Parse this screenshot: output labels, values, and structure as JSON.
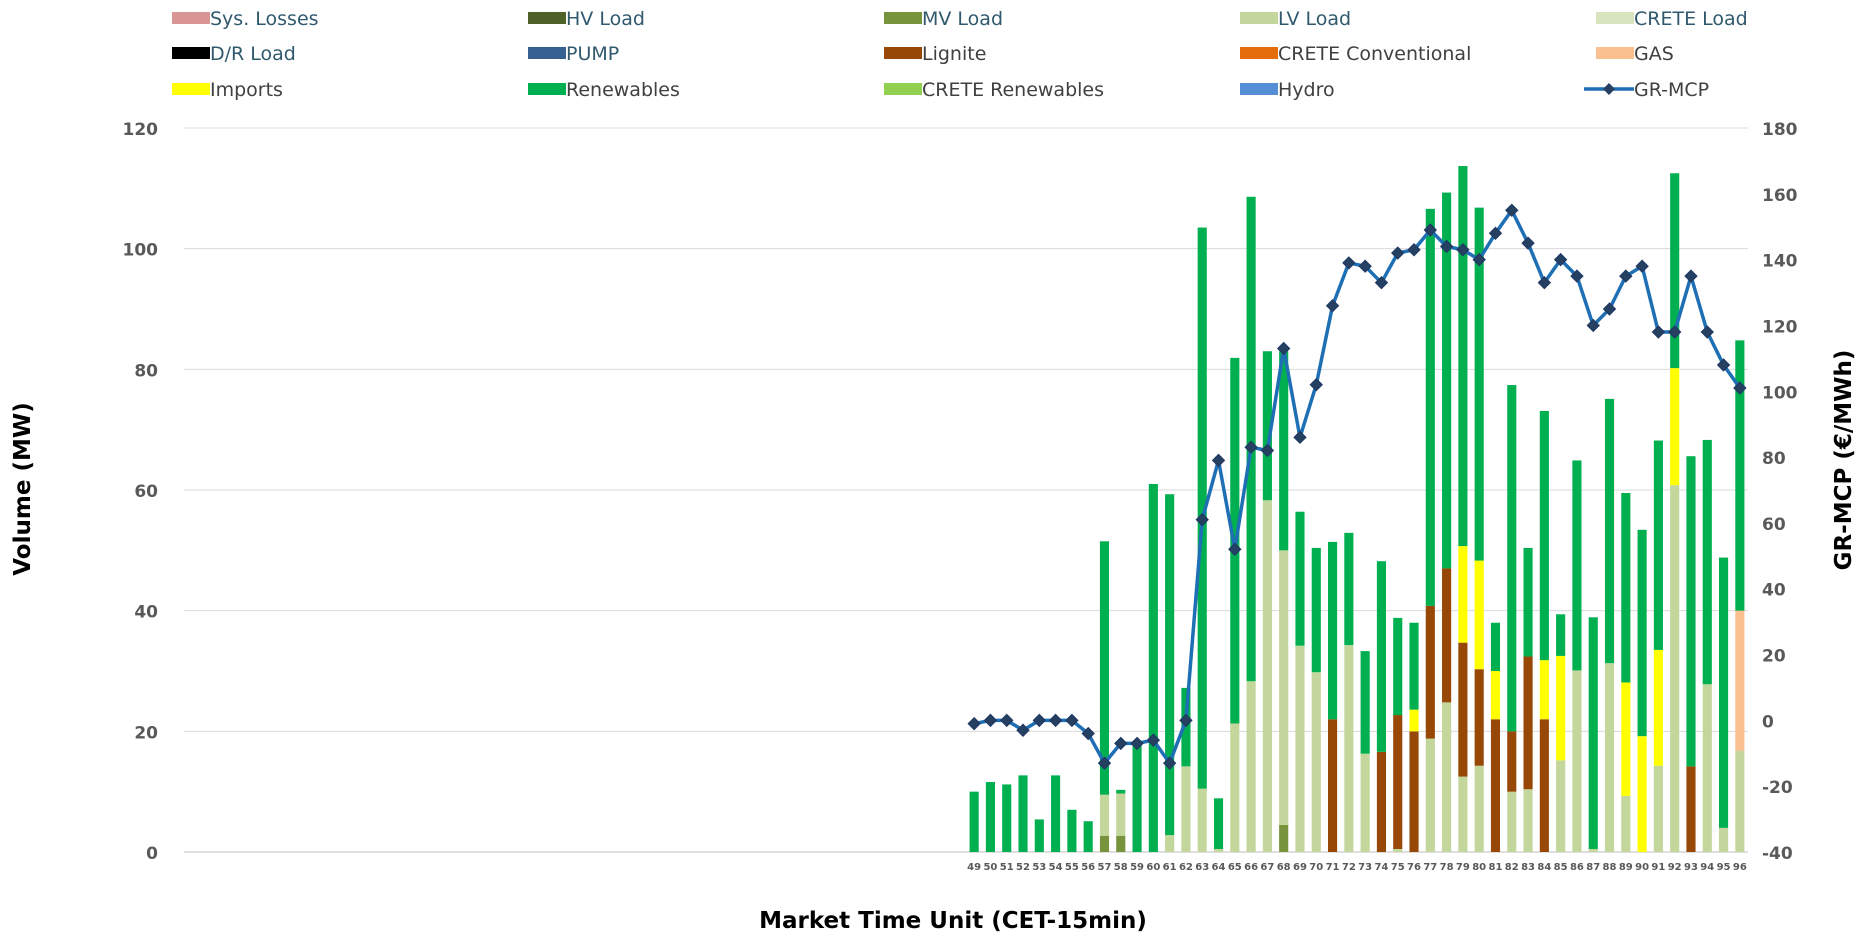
{
  "chart_data": {
    "type": "bar",
    "xlabel": "Market Time Unit (CET-15min)",
    "ylabel": "Volume (MW)",
    "y2label": "GR-MCP (€/MWh)",
    "ylim": [
      0,
      120
    ],
    "y2lim": [
      -40,
      180
    ],
    "yticks": [
      0,
      20,
      40,
      60,
      80,
      100,
      120
    ],
    "y2ticks": [
      -40,
      -20,
      0,
      20,
      40,
      60,
      80,
      100,
      120,
      140,
      160,
      180
    ],
    "x_range": [
      1,
      96
    ],
    "categories": [
      "49",
      "50",
      "51",
      "52",
      "53",
      "54",
      "55",
      "56",
      "57",
      "58",
      "59",
      "60",
      "61",
      "62",
      "63",
      "64",
      "65",
      "66",
      "67",
      "68",
      "69",
      "70",
      "71",
      "72",
      "73",
      "74",
      "75",
      "76",
      "77",
      "78",
      "79",
      "80",
      "81",
      "82",
      "83",
      "84",
      "85",
      "86",
      "87",
      "88",
      "89",
      "90",
      "91",
      "92",
      "93",
      "94",
      "95",
      "96"
    ],
    "grid": true,
    "legend_position": "top",
    "legend": [
      {
        "name": "Sys. Losses",
        "color": "#D99594",
        "kind": "bar",
        "text_color": "#31596E"
      },
      {
        "name": "HV Load",
        "color": "#4F6228",
        "kind": "bar",
        "text_color": "#31596E"
      },
      {
        "name": "MV Load",
        "color": "#77933C",
        "kind": "bar",
        "text_color": "#31596E"
      },
      {
        "name": "LV Load",
        "color": "#C3D69B",
        "kind": "bar",
        "text_color": "#31596E"
      },
      {
        "name": "CRETE Load",
        "color": "#D7E4BD",
        "kind": "bar",
        "text_color": "#31596E"
      },
      {
        "name": "D/R Load",
        "color": "#000000",
        "kind": "bar",
        "text_color": "#31596E"
      },
      {
        "name": "PUMP",
        "color": "#376092",
        "kind": "bar",
        "text_color": "#31596E"
      },
      {
        "name": "Lignite",
        "color": "#974706",
        "kind": "bar",
        "text_color": "#404040"
      },
      {
        "name": "CRETE Conventional",
        "color": "#E46C0A",
        "kind": "bar",
        "text_color": "#404040"
      },
      {
        "name": "GAS",
        "color": "#FAC090",
        "kind": "bar",
        "text_color": "#404040"
      },
      {
        "name": "Imports",
        "color": "#FFFF00",
        "kind": "bar",
        "text_color": "#404040"
      },
      {
        "name": "Renewables",
        "color": "#00B050",
        "kind": "bar",
        "text_color": "#404040"
      },
      {
        "name": "CRETE Renewables",
        "color": "#92D050",
        "kind": "bar",
        "text_color": "#404040"
      },
      {
        "name": "Hydro",
        "color": "#558ED5",
        "kind": "bar",
        "text_color": "#404040"
      },
      {
        "name": "GR-MCP",
        "color": "#1F6FB5",
        "kind": "line",
        "text_color": "#404040"
      }
    ],
    "series": [
      {
        "name": "MV Load",
        "axis": "left",
        "color": "#77933C",
        "values": [
          0,
          0,
          0,
          0,
          0,
          0,
          0,
          0,
          2.7,
          2.7,
          0,
          0,
          0,
          0,
          0,
          0,
          0,
          0,
          0,
          4.5,
          0,
          0,
          0,
          0,
          0,
          0,
          0,
          0,
          0,
          0,
          0,
          0,
          0,
          0,
          0,
          0,
          0,
          0,
          0,
          0,
          0,
          0,
          0,
          0,
          0,
          0,
          0,
          0
        ]
      },
      {
        "name": "LV Load",
        "axis": "left",
        "color": "#C3D69B",
        "values": [
          0,
          0,
          0,
          0,
          0,
          0,
          0,
          0,
          6.8,
          7,
          0,
          0,
          2.8,
          14.2,
          10.5,
          0.5,
          21.3,
          28.3,
          58.3,
          45.5,
          34.2,
          29.8,
          0,
          34.3,
          16.3,
          0,
          0.5,
          0,
          18.8,
          24.8,
          12.5,
          14.3,
          0,
          10,
          10.4,
          0,
          15.2,
          30.1,
          0.5,
          31.3,
          9.3,
          0,
          14.3,
          60.8,
          0,
          27.8,
          4,
          16.8
        ]
      },
      {
        "name": "Lignite",
        "axis": "left",
        "color": "#974706",
        "values": [
          0,
          0,
          0,
          0,
          0,
          0,
          0,
          0,
          0,
          0,
          0,
          0,
          0,
          0,
          0,
          0,
          0,
          0,
          0,
          0,
          0,
          0,
          22,
          0,
          0,
          16.6,
          22.2,
          20,
          22,
          22.2,
          22.2,
          16,
          22,
          10,
          22,
          22,
          0,
          0,
          0,
          0,
          0,
          0,
          0,
          0,
          14.2,
          0,
          0,
          0
        ]
      },
      {
        "name": "GAS",
        "axis": "left",
        "color": "#FAC090",
        "values": [
          0,
          0,
          0,
          0,
          0,
          0,
          0,
          0,
          0,
          0,
          0,
          0,
          0,
          0,
          0,
          0,
          0,
          0,
          0,
          0,
          0,
          0,
          0,
          0,
          0,
          0,
          0,
          0,
          0,
          0,
          0,
          0,
          0,
          0,
          0,
          0,
          0,
          0,
          0,
          0,
          0,
          0,
          0,
          0,
          0,
          0,
          0,
          23.2
        ]
      },
      {
        "name": "Imports",
        "axis": "left",
        "color": "#FFFF00",
        "values": [
          0,
          0,
          0,
          0,
          0,
          0,
          0,
          0,
          0,
          0,
          0,
          0,
          0,
          0,
          0,
          0,
          0,
          0,
          0,
          0,
          0,
          0,
          0,
          0,
          0,
          0,
          0,
          3.6,
          0,
          0,
          16,
          18,
          8,
          0,
          0,
          9.8,
          17.3,
          0,
          0,
          0,
          18.8,
          19.2,
          19.2,
          19.4,
          0,
          0,
          0,
          0
        ]
      },
      {
        "name": "Renewables",
        "axis": "left",
        "color": "#00B050",
        "values": [
          10,
          11.6,
          11.2,
          12.7,
          5.4,
          12.7,
          7,
          5.1,
          42,
          0.6,
          18,
          61,
          56.5,
          13,
          93,
          8.4,
          60.6,
          80.3,
          24.7,
          33,
          22.2,
          20.6,
          29.4,
          18.6,
          17,
          31.6,
          16.1,
          14.4,
          65.8,
          62.3,
          63,
          58.5,
          8,
          57.4,
          18,
          41.3,
          6.9,
          34.8,
          38.4,
          43.8,
          31.4,
          34.2,
          34.7,
          32.3,
          51.4,
          40.5,
          44.8,
          44.8
        ]
      },
      {
        "name": "GR-MCP",
        "axis": "right",
        "kind": "line",
        "color": "#1F6FB5",
        "values": [
          -1,
          0,
          0,
          -3,
          0,
          0,
          0,
          -4,
          -13,
          -7,
          -7,
          -6,
          -13,
          0,
          61,
          79,
          52,
          83,
          82,
          113,
          86,
          102,
          126,
          139,
          138,
          133,
          142,
          143,
          149,
          144,
          143,
          140,
          148,
          155,
          145,
          133,
          140,
          135,
          120,
          125,
          135,
          138,
          118,
          118,
          135,
          118,
          108,
          101
        ]
      }
    ]
  }
}
